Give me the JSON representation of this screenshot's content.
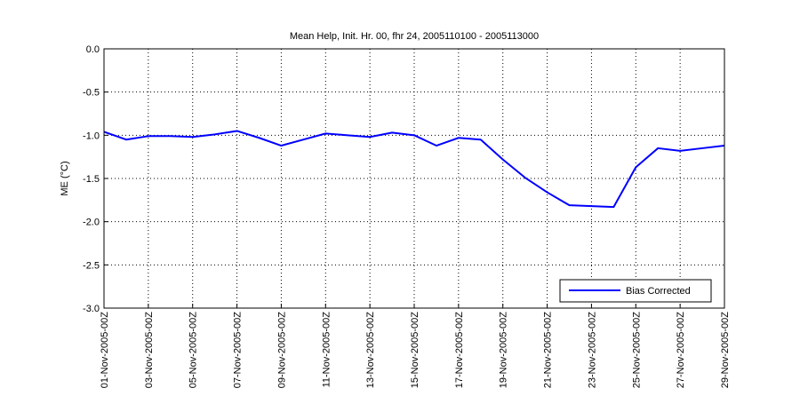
{
  "chart_data": {
    "type": "line",
    "title": "Mean Help, Init. Hr. 00, fhr 24, 2005110100 - 2005113000",
    "xlabel": "",
    "ylabel": "ME (°C)",
    "ylim": [
      -3.0,
      0.0
    ],
    "yticks": [
      "0.0",
      "-0.5",
      "-1.0",
      "-1.5",
      "-2.0",
      "-2.5",
      "-3.0"
    ],
    "ytick_values": [
      0.0,
      -0.5,
      -1.0,
      -1.5,
      -2.0,
      -2.5,
      -3.0
    ],
    "xlim_days": [
      1,
      29
    ],
    "xtick_labels": [
      "01-Nov-2005-00Z",
      "03-Nov-2005-00Z",
      "05-Nov-2005-00Z",
      "07-Nov-2005-00Z",
      "09-Nov-2005-00Z",
      "11-Nov-2005-00Z",
      "13-Nov-2005-00Z",
      "15-Nov-2005-00Z",
      "17-Nov-2005-00Z",
      "19-Nov-2005-00Z",
      "21-Nov-2005-00Z",
      "23-Nov-2005-00Z",
      "25-Nov-2005-00Z",
      "27-Nov-2005-00Z",
      "29-Nov-2005-00Z"
    ],
    "grid": true,
    "legend_position": "bottom-right",
    "series": [
      {
        "name": "Bias Corrected",
        "color": "#0000ff",
        "x": [
          1,
          2,
          3,
          4,
          5,
          6,
          7,
          8,
          9,
          10,
          11,
          12,
          13,
          14,
          15,
          16,
          17,
          18,
          19,
          20,
          21,
          22,
          23,
          24,
          25,
          26,
          27,
          28,
          29
        ],
        "values": [
          -0.96,
          -1.05,
          -1.01,
          -1.01,
          -1.02,
          -0.99,
          -0.95,
          -1.03,
          -1.12,
          -1.05,
          -0.98,
          -1.0,
          -1.02,
          -0.97,
          -1.0,
          -1.12,
          -1.03,
          -1.05,
          -1.28,
          -1.49,
          -1.66,
          -1.81,
          -1.82,
          -1.83,
          -1.37,
          -1.15,
          -1.18,
          -1.15,
          -1.12
        ]
      }
    ]
  }
}
